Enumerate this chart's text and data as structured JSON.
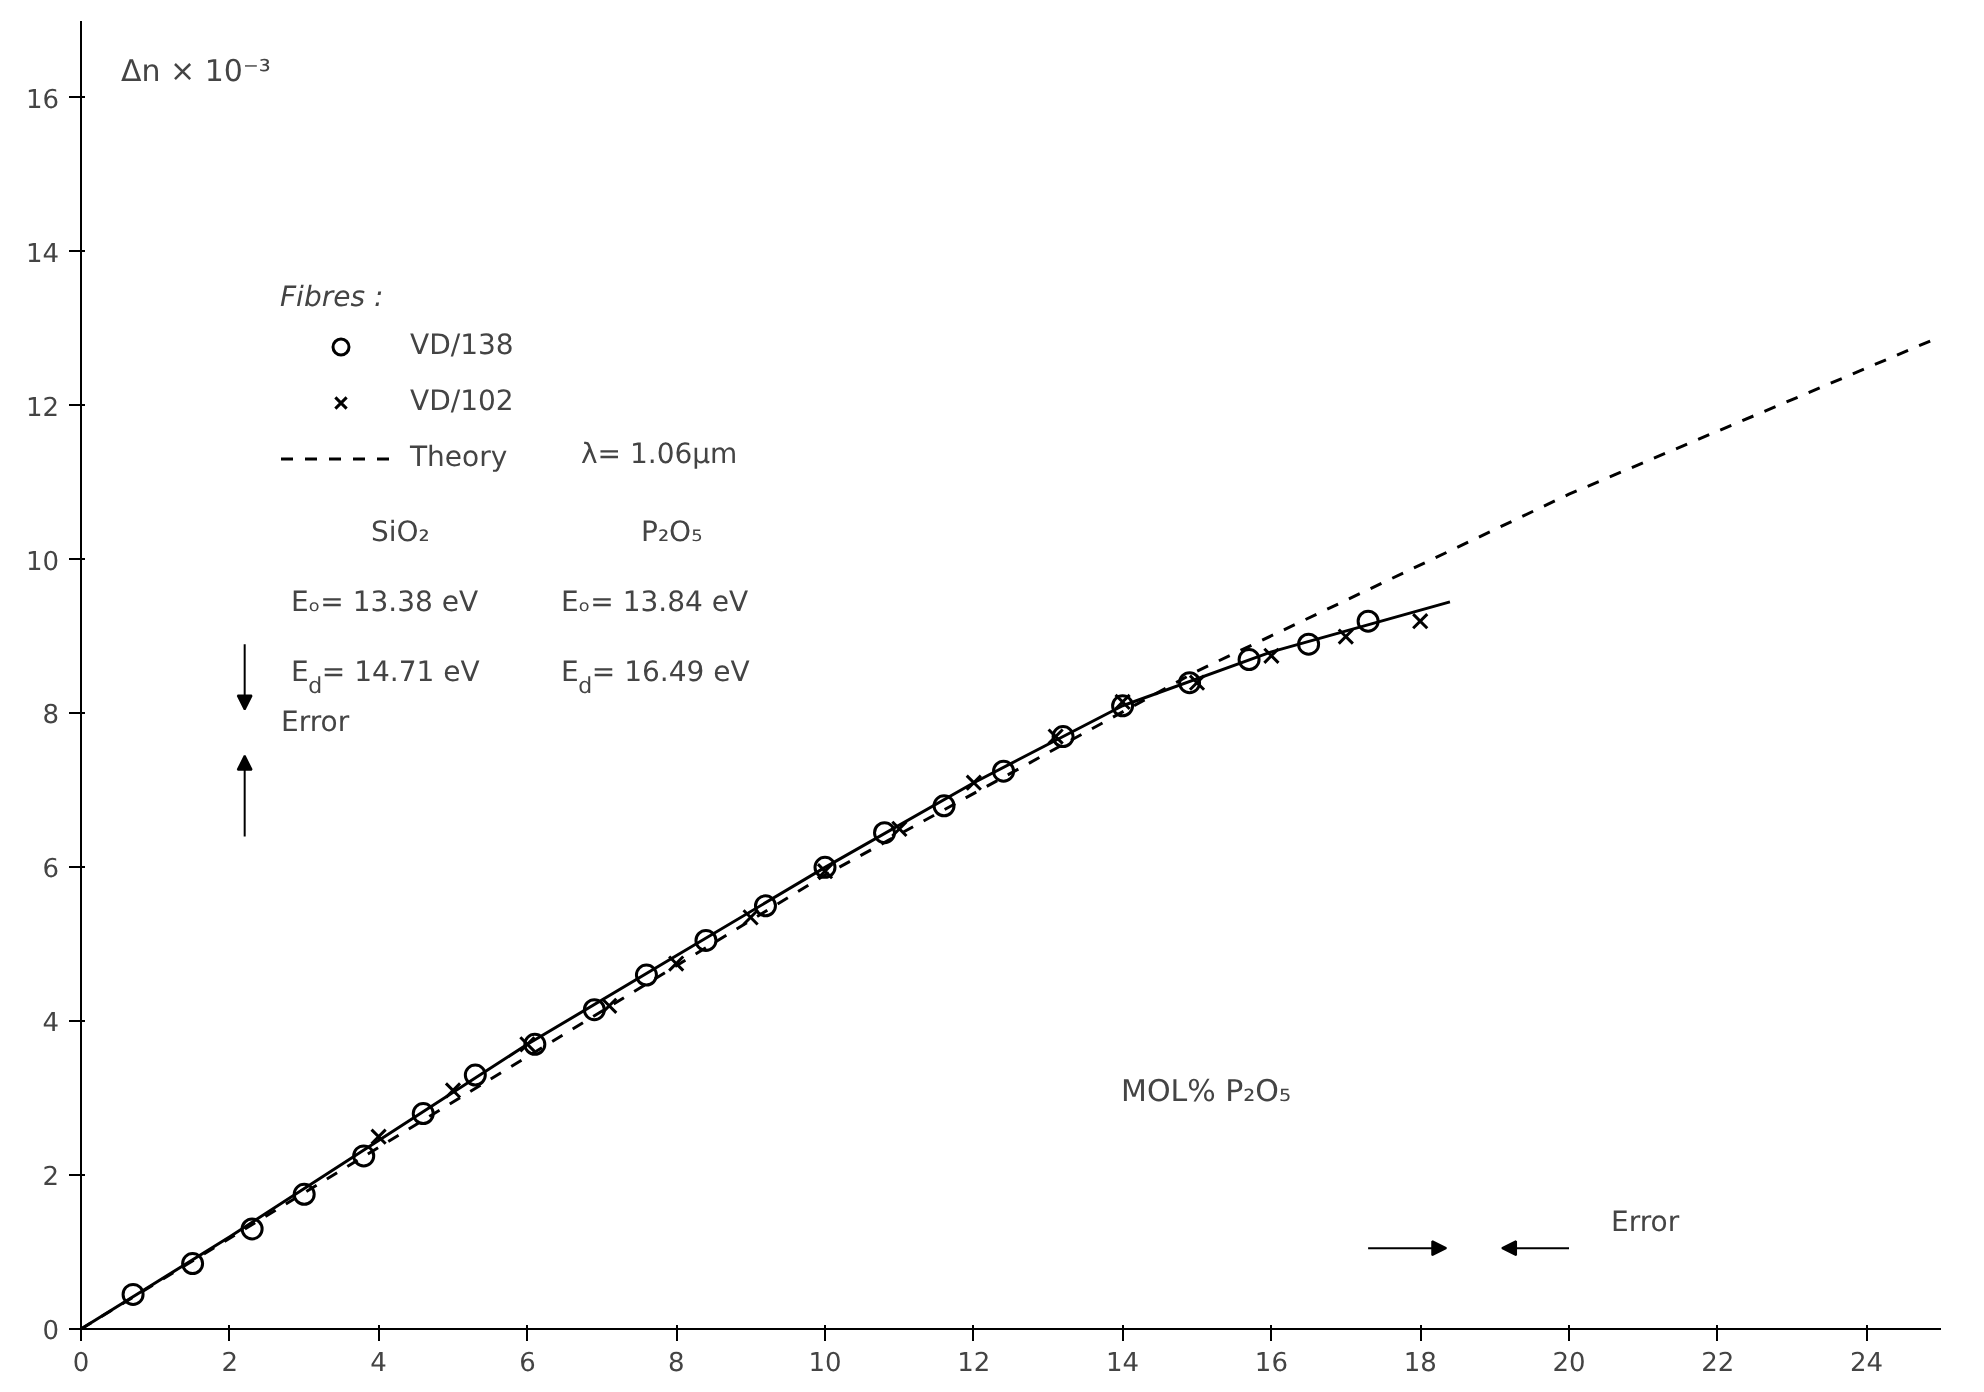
{
  "chart_data": {
    "type": "scatter",
    "ylabel": "Δn × 10⁻³",
    "xlabel": "MOL% P₂O₅",
    "legend_title": "Fibres :",
    "legend": "top left",
    "xlim": [
      0,
      25
    ],
    "ylim": [
      0,
      17
    ],
    "xticks": [
      0,
      2,
      4,
      6,
      8,
      10,
      12,
      14,
      16,
      18,
      20,
      22,
      24
    ],
    "yticks": [
      0,
      2,
      4,
      6,
      8,
      10,
      12,
      14,
      16
    ],
    "grid": false,
    "series": [
      {
        "name": "VD/138",
        "color": "#000000",
        "marker": "circle",
        "x": [
          0.7,
          1.5,
          2.3,
          3.0,
          3.8,
          4.6,
          5.3,
          6.1,
          6.9,
          7.6,
          8.4,
          9.2,
          10.0,
          10.8,
          11.6,
          12.4,
          13.2,
          14.0,
          14.9,
          15.7,
          16.5,
          17.3
        ],
        "values": [
          0.45,
          0.85,
          1.3,
          1.75,
          2.25,
          2.8,
          3.3,
          3.7,
          4.15,
          4.6,
          5.05,
          5.5,
          6.0,
          6.45,
          6.8,
          7.25,
          7.7,
          8.1,
          8.4,
          8.7,
          8.9,
          9.2
        ]
      },
      {
        "name": "VD/102",
        "color": "#000000",
        "marker": "cross",
        "x": [
          4.0,
          5.0,
          6.0,
          7.1,
          8.0,
          9.0,
          10.0,
          11.0,
          12.0,
          13.1,
          14.0,
          15.0,
          16.0,
          17.0,
          18.0
        ],
        "values": [
          2.5,
          3.1,
          3.7,
          4.2,
          4.75,
          5.35,
          5.95,
          6.5,
          7.1,
          7.7,
          8.15,
          8.4,
          8.75,
          9.0,
          9.2
        ]
      },
      {
        "type": "line",
        "color": "#000000",
        "line_style": "solid",
        "x": [
          0,
          2,
          4,
          6,
          8,
          10,
          12,
          14,
          16,
          18.4
        ],
        "values": [
          0,
          1.2,
          2.45,
          3.7,
          4.85,
          6.0,
          7.1,
          8.1,
          8.8,
          9.45
        ]
      },
      {
        "type": "line",
        "name": "Theory",
        "color": "#000000",
        "line_style": "dashed",
        "x": [
          0,
          5,
          10,
          15,
          20,
          25
        ],
        "values": [
          0,
          2.95,
          5.9,
          8.55,
          10.85,
          12.9
        ]
      }
    ],
    "annotations": [
      "λ= 1.06μm",
      "SiO₂",
      "P₂O₅",
      "Eₒ= 13.38 eV",
      "E$_{d}$= 14.71 eV",
      "Eₒ= 13.84 eV",
      "E$_{d}$= 16.49 eV",
      "Error",
      "Error"
    ]
  }
}
